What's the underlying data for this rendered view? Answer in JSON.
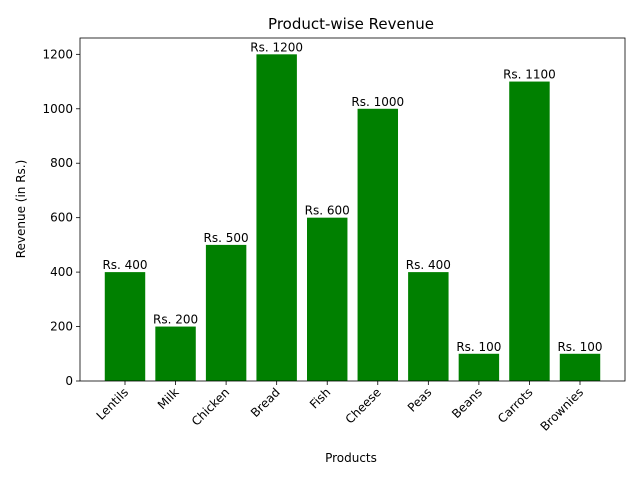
{
  "chart_data": {
    "type": "bar",
    "title": "Product-wise Revenue",
    "xlabel": "Products",
    "ylabel": "Revenue (in Rs.)",
    "categories": [
      "Lentils",
      "Milk",
      "Chicken",
      "Bread",
      "Fish",
      "Cheese",
      "Peas",
      "Beans",
      "Carrots",
      "Brownies"
    ],
    "values": [
      400,
      200,
      500,
      1200,
      600,
      1000,
      400,
      100,
      1100,
      100
    ],
    "data_labels": [
      "Rs. 400",
      "Rs. 200",
      "Rs. 500",
      "Rs. 1200",
      "Rs. 600",
      "Rs. 1000",
      "Rs. 400",
      "Rs. 100",
      "Rs. 1100",
      "Rs. 100"
    ],
    "yticks": [
      0,
      200,
      400,
      600,
      800,
      1000,
      1200
    ],
    "ylim": [
      0,
      1260
    ],
    "bar_color": "#008000",
    "grid": false,
    "legend": "none"
  }
}
